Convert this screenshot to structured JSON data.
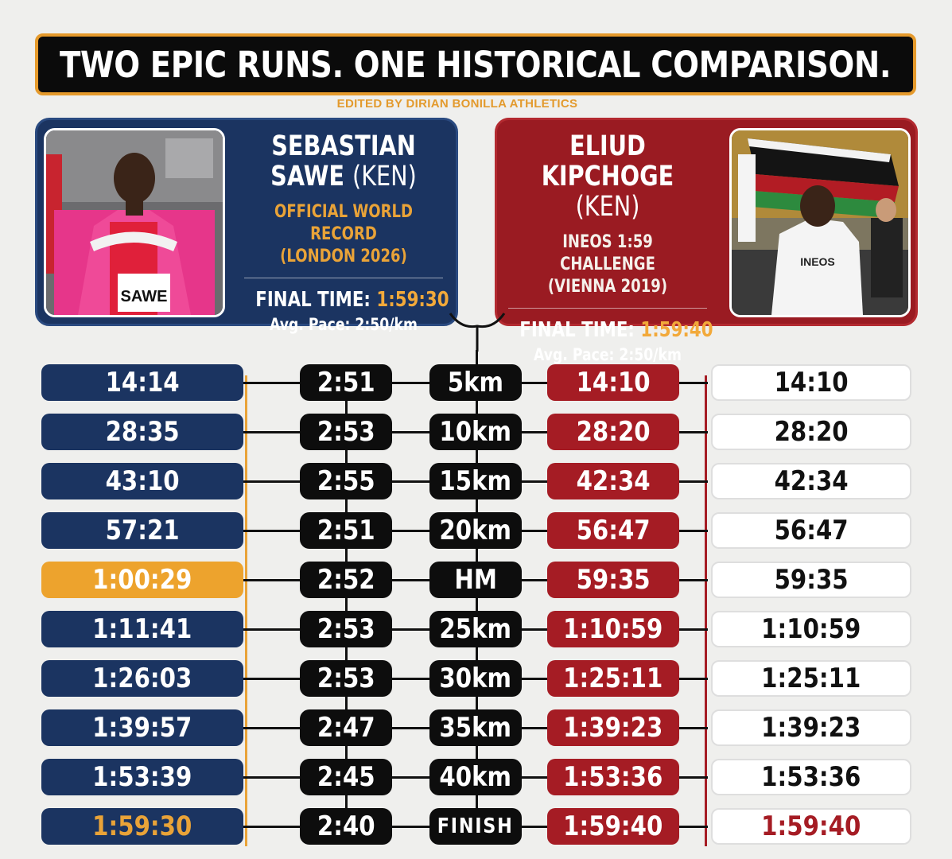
{
  "title": "TWO EPIC RUNS. ONE HISTORICAL COMPARISON.",
  "credit": "EDITED BY DIRIAN BONILLA ATHLETICS",
  "runners": {
    "left": {
      "name_line1": "SEBASTIAN",
      "name_line2": "SAWE",
      "nationality": "(KEN)",
      "event_line1": "OFFICIAL WORLD RECORD",
      "event_line2": "(LONDON 2026)",
      "final_label": "FINAL TIME:",
      "final_time": "1:59:30",
      "pace": "Avg. Pace: 2:50/km",
      "bib": "SAWE"
    },
    "right": {
      "name_line1": "ELIUD",
      "name_line2": "KIPCHOGE",
      "nationality": "(KEN)",
      "event_line1": "INEOS 1:59 CHALLENGE",
      "event_line2": "(VIENNA 2019)",
      "final_label": "FINAL TIME:",
      "final_time": "1:59:40",
      "pace": "Avg. Pace: 2:50/km",
      "shirt": "INEOS"
    }
  },
  "colors": {
    "navy": "#1b3461",
    "red": "#a51c24",
    "orange": "#eda32d",
    "black": "#0d0d0d"
  },
  "splits": [
    {
      "sawe": "14:14",
      "pace": "2:51",
      "dist": "5km",
      "kip": "14:10",
      "kip2": "14:10"
    },
    {
      "sawe": "28:35",
      "pace": "2:53",
      "dist": "10km",
      "kip": "28:20",
      "kip2": "28:20"
    },
    {
      "sawe": "43:10",
      "pace": "2:55",
      "dist": "15km",
      "kip": "42:34",
      "kip2": "42:34"
    },
    {
      "sawe": "57:21",
      "pace": "2:51",
      "dist": "20km",
      "kip": "56:47",
      "kip2": "56:47"
    },
    {
      "sawe": "1:00:29",
      "pace": "2:52",
      "dist": "HM",
      "kip": "59:35",
      "kip2": "59:35"
    },
    {
      "sawe": "1:11:41",
      "pace": "2:53",
      "dist": "25km",
      "kip": "1:10:59",
      "kip2": "1:10:59"
    },
    {
      "sawe": "1:26:03",
      "pace": "2:53",
      "dist": "30km",
      "kip": "1:25:11",
      "kip2": "1:25:11"
    },
    {
      "sawe": "1:39:57",
      "pace": "2:47",
      "dist": "35km",
      "kip": "1:39:23",
      "kip2": "1:39:23"
    },
    {
      "sawe": "1:53:39",
      "pace": "2:45",
      "dist": "40km",
      "kip": "1:53:36",
      "kip2": "1:53:36"
    },
    {
      "sawe": "1:59:30",
      "pace": "2:40",
      "dist": "FINISH",
      "kip": "1:59:40",
      "kip2": "1:59:40"
    }
  ]
}
